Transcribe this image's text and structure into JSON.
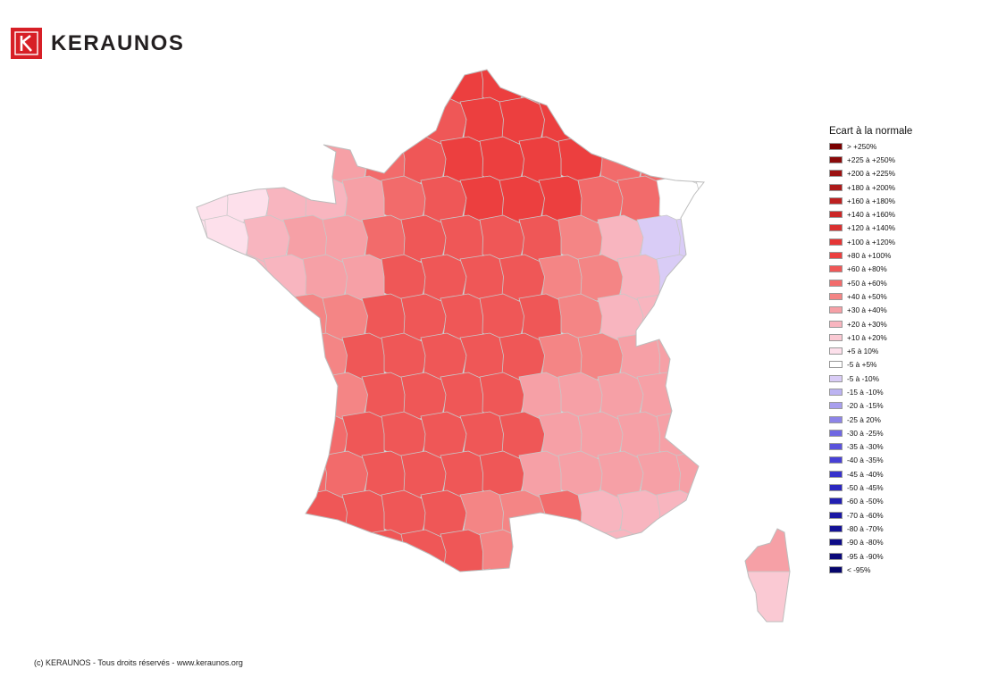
{
  "brand": {
    "name": "KERAUNOS",
    "colors": {
      "logo_red": "#d71f26",
      "logo_text": "#231f20"
    }
  },
  "map": {
    "region": "France (departements)",
    "colors": {
      "border": "#c8c8c8"
    }
  },
  "legend": {
    "title": "Ecart à la normale",
    "items": [
      {
        "label": "> +250%",
        "color": "#7a0000"
      },
      {
        "label": "+225 à +250%",
        "color": "#8a0a0a"
      },
      {
        "label": "+200 à +225%",
        "color": "#9c1212"
      },
      {
        "label": "+180 à +200%",
        "color": "#ad1a1a"
      },
      {
        "label": "+160 à +180%",
        "color": "#bd2020"
      },
      {
        "label": "+140 à +160%",
        "color": "#cc2727"
      },
      {
        "label": "+120 à +140%",
        "color": "#d93030"
      },
      {
        "label": "+100 à +120%",
        "color": "#e53535"
      },
      {
        "label": "+80 à +100%",
        "color": "#ec3f3f"
      },
      {
        "label": "+60 à +80%",
        "color": "#ef5757"
      },
      {
        "label": "+50 à +60%",
        "color": "#f26b6b"
      },
      {
        "label": "+40 à +50%",
        "color": "#f48585"
      },
      {
        "label": "+30 à +40%",
        "color": "#f6a0a6"
      },
      {
        "label": "+20 à +30%",
        "color": "#f8b5bf"
      },
      {
        "label": "+10 à +20%",
        "color": "#fac9d3"
      },
      {
        "label": "+5 à 10%",
        "color": "#fde0eb"
      },
      {
        "label": "-5 à +5%",
        "color": "#ffffff"
      },
      {
        "label": "-5 à -10%",
        "color": "#d9ccf6"
      },
      {
        "label": "-15 à -10%",
        "color": "#bcb3f2"
      },
      {
        "label": "-20 à -15%",
        "color": "#a89fee"
      },
      {
        "label": "-25 à 20%",
        "color": "#8d84e8"
      },
      {
        "label": "-30 à -25%",
        "color": "#6f67e2"
      },
      {
        "label": "-35 à -30%",
        "color": "#5a52dc"
      },
      {
        "label": "-40 à -35%",
        "color": "#4740d6"
      },
      {
        "label": "-45 à -40%",
        "color": "#3731cc"
      },
      {
        "label": "-50 à -45%",
        "color": "#2b27c0"
      },
      {
        "label": "-60 à -50%",
        "color": "#221fb2"
      },
      {
        "label": "-70 à -60%",
        "color": "#1b18a4"
      },
      {
        "label": "-80 à -70%",
        "color": "#141296"
      },
      {
        "label": "-90 à -80%",
        "color": "#0e0c88"
      },
      {
        "label": "-95 à -90%",
        "color": "#0a087a"
      },
      {
        "label": "< -95%",
        "color": "#06056c"
      }
    ]
  },
  "footer": {
    "text": "(c) KERAUNOS - Tous droits réservés - www.keraunos.org"
  }
}
